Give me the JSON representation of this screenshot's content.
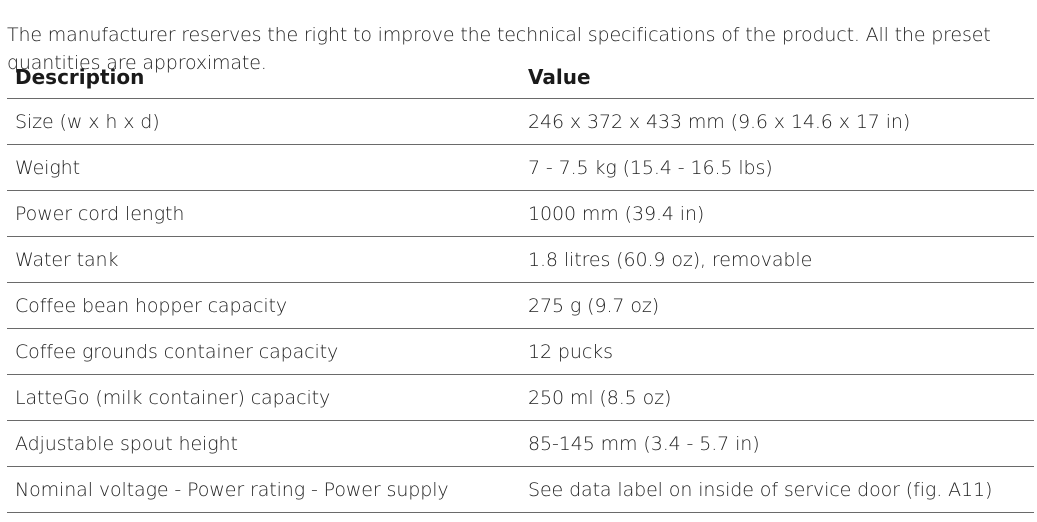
{
  "intro_text": "The manufacturer reserves the right to improve the technical specifications of the product. All the preset quantities are approximate.",
  "table": {
    "headers": {
      "description": "Description",
      "value": "Value"
    },
    "rows": [
      {
        "description": "Size (w x h x d)",
        "value": "246 x 372 x 433 mm (9.6 x 14.6 x 17 in)"
      },
      {
        "description": "Weight",
        "value": "7 - 7.5 kg (15.4 - 16.5 lbs)"
      },
      {
        "description": "Power cord length",
        "value": "1000 mm (39.4 in)"
      },
      {
        "description": "Water tank",
        "value": "1.8 litres (60.9 oz), removable"
      },
      {
        "description": "Coffee bean hopper capacity",
        "value": "275 g (9.7 oz)"
      },
      {
        "description": "Coffee grounds container capacity",
        "value": "12 pucks"
      },
      {
        "description": "LatteGo (milk container) capacity",
        "value": "250 ml (8.5 oz)"
      },
      {
        "description": "Adjustable spout height",
        "value": "85-145 mm (3.4 - 5.7 in)"
      },
      {
        "description": "Nominal voltage - Power rating - Power supply",
        "value": "See data label on inside of service door (fig. A11)"
      }
    ]
  }
}
